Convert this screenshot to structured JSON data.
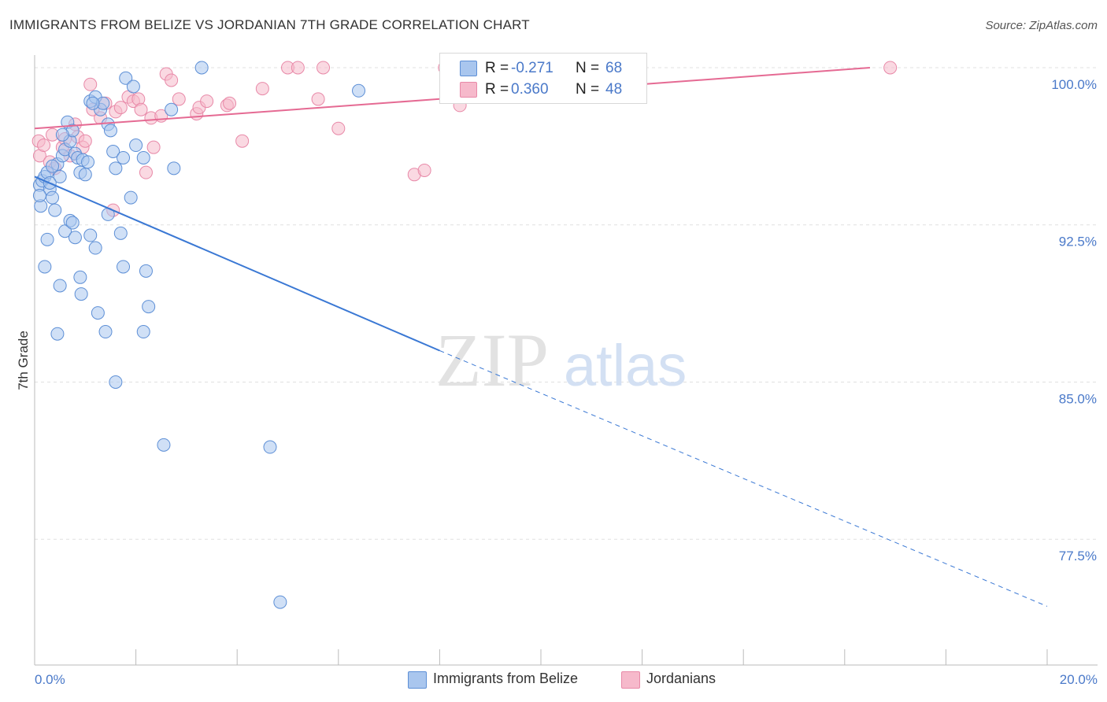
{
  "header": {
    "title": "IMMIGRANTS FROM BELIZE VS JORDANIAN 7TH GRADE CORRELATION CHART",
    "source": "Source: ZipAtlas.com"
  },
  "watermark": {
    "zip": "ZIP",
    "atlas": "atlas"
  },
  "stats": {
    "belize": {
      "r_label": "R =",
      "r_value": "-0.271",
      "n_label": "N =",
      "n_value": "68"
    },
    "jordan": {
      "r_label": "R =",
      "r_value": "0.360",
      "n_label": "N =",
      "n_value": "48"
    }
  },
  "legend": {
    "belize": "Immigrants from Belize",
    "jordan": "Jordanians"
  },
  "colors": {
    "belize_fill": "#a9c6ee",
    "belize_stroke": "#5d8fd6",
    "belize_line": "#3a78d4",
    "jordan_fill": "#f6b9cb",
    "jordan_stroke": "#e889a8",
    "jordan_line": "#e56a93",
    "tick_label": "#4a79c9",
    "grid": "#e0e0e0"
  },
  "chart_data": {
    "type": "scatter",
    "title": "IMMIGRANTS FROM BELIZE VS JORDANIAN 7TH GRADE CORRELATION CHART",
    "xlabel": "",
    "ylabel": "7th Grade",
    "xlim": [
      0,
      20
    ],
    "ylim": [
      71.5,
      100.6
    ],
    "x_tick_labels": [
      "0.0%",
      "20.0%"
    ],
    "y_ticks": [
      77.5,
      85.0,
      92.5,
      100.0
    ],
    "y_tick_labels": [
      "77.5%",
      "85.0%",
      "92.5%",
      "100.0%"
    ],
    "grid": true,
    "legend_position": "bottom-center",
    "series": [
      {
        "name": "Immigrants from Belize",
        "r": -0.271,
        "n": 68,
        "trend": {
          "x0": 0.0,
          "y0": 94.8,
          "x_solid_end": 8.0,
          "y_solid_end": 86.5,
          "x1": 20.0,
          "y1": 74.3
        },
        "points": [
          [
            0.1,
            94.4
          ],
          [
            0.15,
            94.6
          ],
          [
            0.2,
            94.8
          ],
          [
            0.25,
            95.0
          ],
          [
            0.3,
            94.2
          ],
          [
            0.12,
            93.4
          ],
          [
            0.35,
            93.8
          ],
          [
            0.4,
            93.2
          ],
          [
            0.5,
            94.8
          ],
          [
            0.45,
            95.4
          ],
          [
            0.55,
            95.8
          ],
          [
            0.6,
            96.1
          ],
          [
            0.7,
            96.5
          ],
          [
            0.65,
            97.4
          ],
          [
            0.75,
            97.0
          ],
          [
            0.8,
            95.9
          ],
          [
            0.85,
            95.7
          ],
          [
            0.9,
            95.0
          ],
          [
            0.95,
            95.6
          ],
          [
            1.05,
            95.5
          ],
          [
            1.0,
            94.9
          ],
          [
            1.1,
            98.4
          ],
          [
            1.2,
            98.6
          ],
          [
            1.3,
            98.0
          ],
          [
            1.35,
            98.3
          ],
          [
            1.45,
            97.3
          ],
          [
            1.5,
            97.0
          ],
          [
            1.55,
            96.0
          ],
          [
            1.6,
            95.2
          ],
          [
            1.75,
            95.7
          ],
          [
            1.8,
            99.5
          ],
          [
            1.95,
            99.1
          ],
          [
            2.0,
            96.3
          ],
          [
            2.15,
            95.7
          ],
          [
            2.7,
            98.0
          ],
          [
            2.75,
            95.2
          ],
          [
            0.25,
            91.8
          ],
          [
            0.2,
            90.5
          ],
          [
            0.5,
            89.6
          ],
          [
            0.6,
            92.2
          ],
          [
            0.7,
            92.7
          ],
          [
            0.8,
            91.9
          ],
          [
            0.9,
            90.0
          ],
          [
            0.92,
            89.2
          ],
          [
            1.1,
            92.0
          ],
          [
            1.2,
            91.4
          ],
          [
            1.25,
            88.3
          ],
          [
            1.4,
            87.4
          ],
          [
            1.45,
            93.0
          ],
          [
            1.7,
            92.1
          ],
          [
            1.75,
            90.5
          ],
          [
            1.9,
            93.8
          ],
          [
            2.2,
            90.3
          ],
          [
            2.15,
            87.4
          ],
          [
            2.25,
            88.6
          ],
          [
            1.6,
            85.0
          ],
          [
            2.55,
            82.0
          ],
          [
            4.65,
            81.9
          ],
          [
            4.85,
            74.5
          ],
          [
            0.45,
            87.3
          ],
          [
            0.75,
            92.6
          ],
          [
            3.3,
            100.0
          ],
          [
            6.4,
            98.9
          ],
          [
            0.1,
            93.9
          ],
          [
            0.3,
            94.5
          ],
          [
            0.55,
            96.8
          ],
          [
            1.15,
            98.3
          ],
          [
            0.35,
            95.3
          ]
        ]
      },
      {
        "name": "Jordanians",
        "r": 0.36,
        "n": 48,
        "trend": {
          "x0": 0.0,
          "y0": 97.1,
          "x1": 16.5,
          "y1": 100.0
        },
        "points": [
          [
            0.08,
            96.5
          ],
          [
            0.1,
            95.8
          ],
          [
            0.18,
            96.3
          ],
          [
            0.3,
            95.5
          ],
          [
            0.35,
            96.8
          ],
          [
            0.4,
            95.2
          ],
          [
            0.55,
            96.2
          ],
          [
            0.6,
            96.6
          ],
          [
            0.7,
            95.8
          ],
          [
            0.8,
            97.3
          ],
          [
            0.85,
            96.7
          ],
          [
            0.95,
            96.2
          ],
          [
            1.0,
            96.5
          ],
          [
            1.1,
            99.2
          ],
          [
            1.15,
            98.0
          ],
          [
            1.3,
            97.6
          ],
          [
            1.4,
            98.3
          ],
          [
            1.6,
            97.9
          ],
          [
            1.7,
            98.1
          ],
          [
            1.85,
            98.6
          ],
          [
            1.95,
            98.4
          ],
          [
            2.05,
            98.5
          ],
          [
            2.1,
            98.0
          ],
          [
            2.3,
            97.6
          ],
          [
            2.35,
            96.2
          ],
          [
            2.5,
            97.7
          ],
          [
            2.6,
            99.7
          ],
          [
            2.7,
            99.4
          ],
          [
            2.85,
            98.5
          ],
          [
            3.2,
            97.8
          ],
          [
            3.25,
            98.1
          ],
          [
            3.4,
            98.4
          ],
          [
            3.8,
            98.2
          ],
          [
            3.85,
            98.3
          ],
          [
            4.1,
            96.5
          ],
          [
            4.5,
            99.0
          ],
          [
            5.0,
            100.0
          ],
          [
            5.2,
            100.0
          ],
          [
            5.6,
            98.5
          ],
          [
            5.7,
            100.0
          ],
          [
            6.0,
            97.1
          ],
          [
            7.5,
            94.9
          ],
          [
            7.7,
            95.1
          ],
          [
            8.1,
            100.0
          ],
          [
            8.4,
            98.2
          ],
          [
            16.9,
            100.0
          ],
          [
            1.55,
            93.2
          ],
          [
            2.2,
            95.0
          ]
        ]
      }
    ]
  }
}
